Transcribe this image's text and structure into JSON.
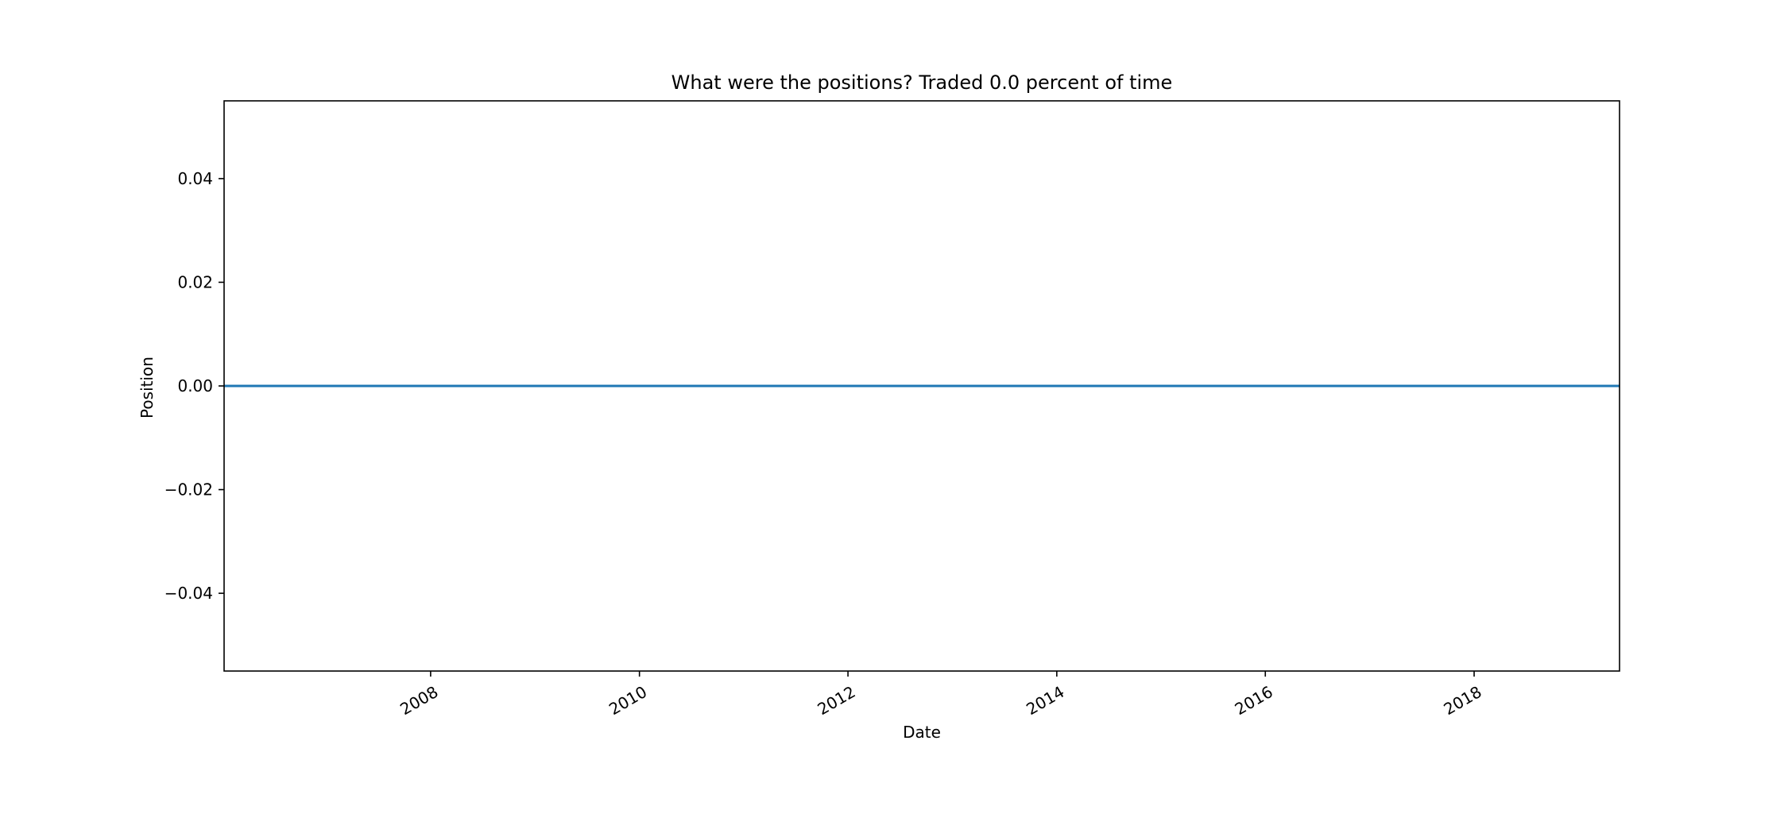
{
  "chart_data": {
    "type": "line",
    "title": "What were the positions? Traded 0.0 percent of time",
    "xlabel": "Date",
    "ylabel": "Position",
    "x_is_date": true,
    "xlim": [
      "2006-01-08",
      "2019-05-25"
    ],
    "ylim": [
      -0.055,
      0.055
    ],
    "xticks": [
      {
        "value": "2008-01-01",
        "label": "2008"
      },
      {
        "value": "2010-01-01",
        "label": "2010"
      },
      {
        "value": "2012-01-01",
        "label": "2012"
      },
      {
        "value": "2014-01-01",
        "label": "2014"
      },
      {
        "value": "2016-01-01",
        "label": "2016"
      },
      {
        "value": "2018-01-01",
        "label": "2018"
      }
    ],
    "yticks": [
      {
        "value": 0.04,
        "label": "0.04"
      },
      {
        "value": 0.02,
        "label": "0.02"
      },
      {
        "value": 0.0,
        "label": "0.00"
      },
      {
        "value": -0.02,
        "label": "−0.02"
      },
      {
        "value": -0.04,
        "label": "−0.04"
      }
    ],
    "series": [
      {
        "color": "#1f77b4",
        "x": [
          "2006-01-08",
          "2019-05-25"
        ],
        "y": [
          0.0,
          0.0
        ]
      }
    ],
    "grid": false,
    "legend": false
  }
}
